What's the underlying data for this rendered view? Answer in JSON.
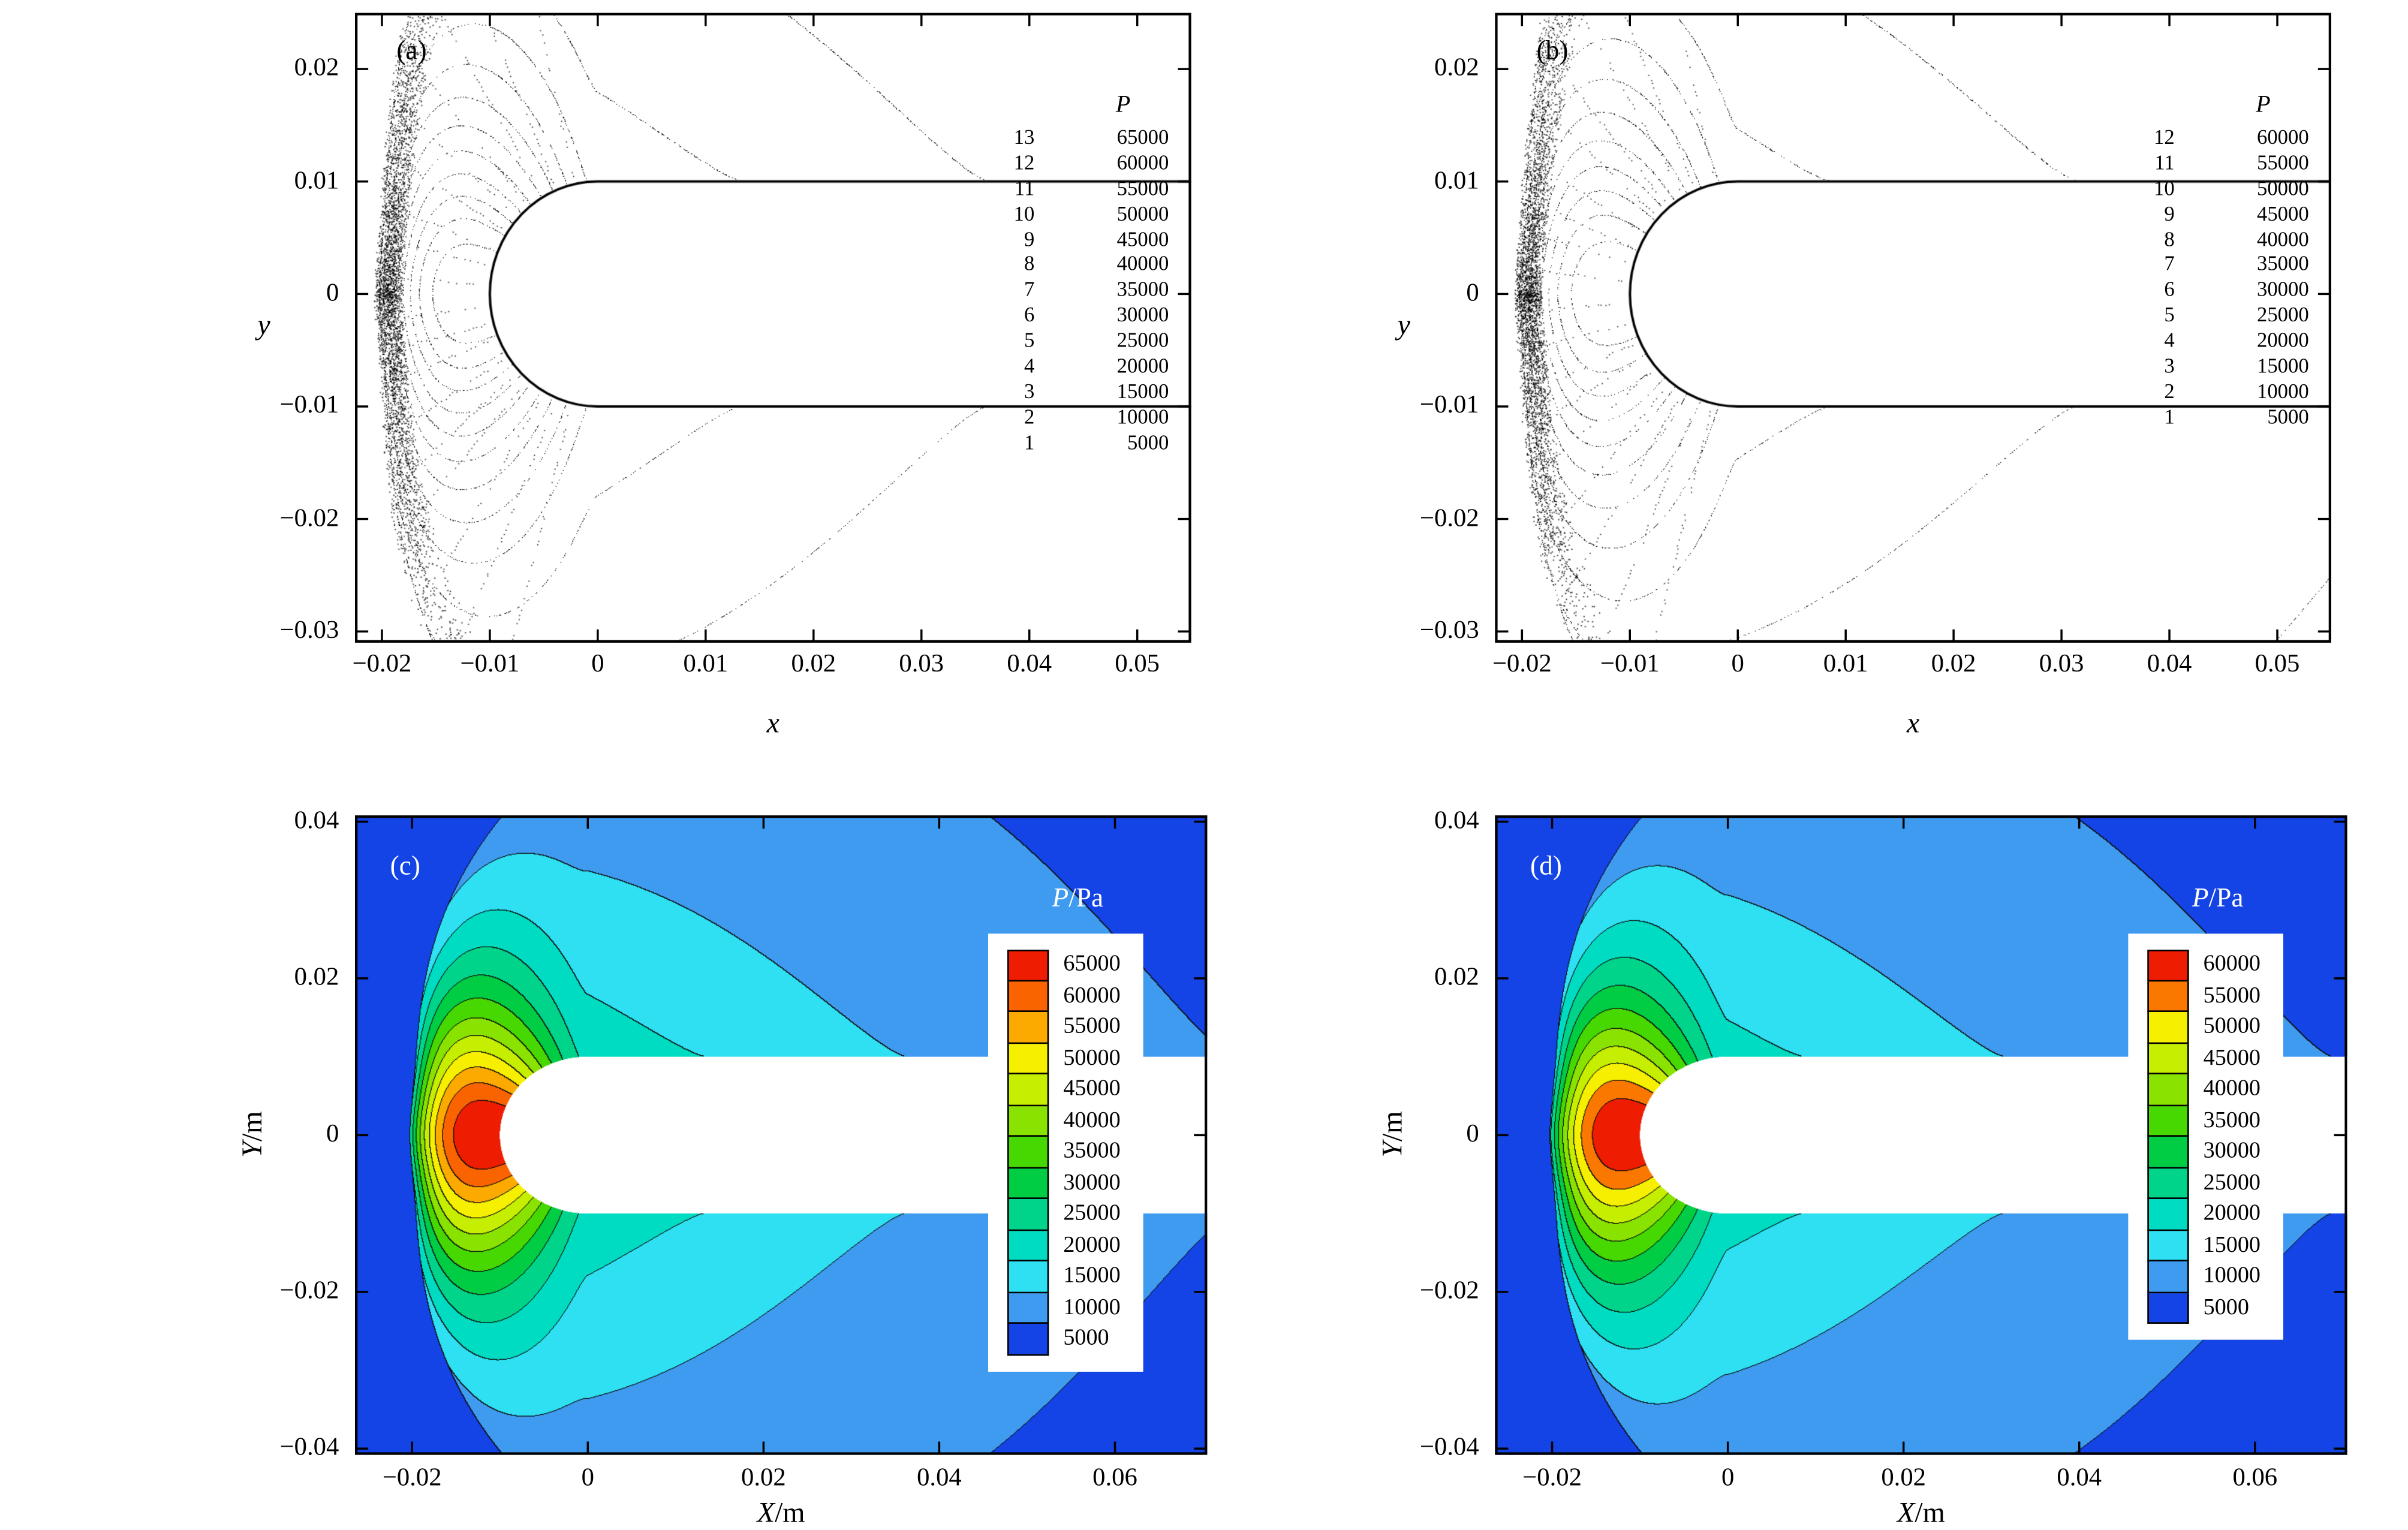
{
  "chart_data": [
    {
      "id": "a",
      "type": "contour",
      "panel_label": "(a)",
      "xlabel": {
        "var": "x",
        "unit": ""
      },
      "ylabel": {
        "var": "y",
        "unit": ""
      },
      "xlim": [
        -0.0225,
        0.055
      ],
      "ylim": [
        -0.031,
        0.025
      ],
      "x_tick_values": [
        -0.02,
        -0.01,
        0,
        0.01,
        0.02,
        0.03,
        0.04,
        0.05
      ],
      "x_tick_labels": [
        "−0.02",
        "−0.01",
        "0",
        "0.01",
        "0.02",
        "0.03",
        "0.04",
        "0.05"
      ],
      "y_tick_values": [
        0.02,
        0.01,
        0,
        -0.01,
        -0.02,
        -0.03
      ],
      "y_tick_labels": [
        "0.02",
        "0.01",
        "0",
        "−0.01",
        "−0.02",
        "−0.03"
      ],
      "legend_title": "P",
      "levels": [
        {
          "index": 13,
          "value": 65000
        },
        {
          "index": 12,
          "value": 60000
        },
        {
          "index": 11,
          "value": 55000
        },
        {
          "index": 10,
          "value": 50000
        },
        {
          "index": 9,
          "value": 45000
        },
        {
          "index": 8,
          "value": 40000
        },
        {
          "index": 7,
          "value": 35000
        },
        {
          "index": 6,
          "value": 30000
        },
        {
          "index": 5,
          "value": 25000
        },
        {
          "index": 4,
          "value": 20000
        },
        {
          "index": 3,
          "value": 15000
        },
        {
          "index": 2,
          "value": 10000
        },
        {
          "index": 1,
          "value": 5000
        }
      ],
      "body": {
        "shape": "capsule",
        "nose_tip_x": -0.01,
        "radius": 0.01
      }
    },
    {
      "id": "b",
      "type": "contour",
      "panel_label": "(b)",
      "xlabel": {
        "var": "x",
        "unit": ""
      },
      "ylabel": {
        "var": "y",
        "unit": ""
      },
      "xlim": [
        -0.0225,
        0.055
      ],
      "ylim": [
        -0.031,
        0.025
      ],
      "x_tick_values": [
        -0.02,
        -0.01,
        0,
        0.01,
        0.02,
        0.03,
        0.04,
        0.05
      ],
      "x_tick_labels": [
        "−0.02",
        "−0.01",
        "0",
        "0.01",
        "0.02",
        "0.03",
        "0.04",
        "0.05"
      ],
      "y_tick_values": [
        0.02,
        0.01,
        0,
        -0.01,
        -0.02,
        -0.03
      ],
      "y_tick_labels": [
        "0.02",
        "0.01",
        "0",
        "−0.01",
        "−0.02",
        "−0.03"
      ],
      "legend_title": "P",
      "levels": [
        {
          "index": 12,
          "value": 60000
        },
        {
          "index": 11,
          "value": 55000
        },
        {
          "index": 10,
          "value": 50000
        },
        {
          "index": 9,
          "value": 45000
        },
        {
          "index": 8,
          "value": 40000
        },
        {
          "index": 7,
          "value": 35000
        },
        {
          "index": 6,
          "value": 30000
        },
        {
          "index": 5,
          "value": 25000
        },
        {
          "index": 4,
          "value": 20000
        },
        {
          "index": 3,
          "value": 15000
        },
        {
          "index": 2,
          "value": 10000
        },
        {
          "index": 1,
          "value": 5000
        }
      ],
      "body": {
        "shape": "capsule",
        "nose_tip_x": -0.01,
        "radius": 0.01
      }
    },
    {
      "id": "c",
      "type": "filled-contour",
      "panel_label": "(c)",
      "xlabel": {
        "var": "X",
        "unit": "/m"
      },
      "ylabel": {
        "var": "Y",
        "unit": "/m"
      },
      "xlim": [
        -0.0265,
        0.0705
      ],
      "ylim": [
        -0.0408,
        0.0408
      ],
      "x_tick_values": [
        -0.02,
        0,
        0.02,
        0.04,
        0.06
      ],
      "x_tick_labels": [
        "−0.02",
        "0",
        "0.02",
        "0.04",
        "0.06"
      ],
      "y_tick_values": [
        0.04,
        0.02,
        0,
        -0.02,
        -0.04
      ],
      "y_tick_labels": [
        "0.04",
        "0.02",
        "0",
        "−0.02",
        "−0.04"
      ],
      "colorbar_title": {
        "var": "P",
        "unit": "/Pa"
      },
      "levels": [
        {
          "value": 65000,
          "color": "#ee1c00"
        },
        {
          "value": 60000,
          "color": "#fa6400"
        },
        {
          "value": 55000,
          "color": "#fcaa00"
        },
        {
          "value": 50000,
          "color": "#f6f000"
        },
        {
          "value": 45000,
          "color": "#c6ee00"
        },
        {
          "value": 40000,
          "color": "#8ae200"
        },
        {
          "value": 35000,
          "color": "#46d800"
        },
        {
          "value": 30000,
          "color": "#00cc44"
        },
        {
          "value": 25000,
          "color": "#00d48a"
        },
        {
          "value": 20000,
          "color": "#00dcc2"
        },
        {
          "value": 15000,
          "color": "#2ee0f2"
        },
        {
          "value": 10000,
          "color": "#3f9bf0"
        },
        {
          "value": 5000,
          "color": "#1443e6"
        }
      ],
      "body": {
        "shape": "capsule",
        "nose_tip_x": -0.01,
        "radius": 0.01
      }
    },
    {
      "id": "d",
      "type": "filled-contour",
      "panel_label": "(d)",
      "xlabel": {
        "var": "X",
        "unit": "/m"
      },
      "ylabel": {
        "var": "Y",
        "unit": "/m"
      },
      "xlim": [
        -0.0265,
        0.0705
      ],
      "ylim": [
        -0.0408,
        0.0408
      ],
      "x_tick_values": [
        -0.02,
        0,
        0.02,
        0.04,
        0.06
      ],
      "x_tick_labels": [
        "−0.02",
        "0",
        "0.02",
        "0.04",
        "0.06"
      ],
      "y_tick_values": [
        0.04,
        0.02,
        0,
        -0.02,
        -0.04
      ],
      "y_tick_labels": [
        "0.04",
        "0.02",
        "0",
        "−0.02",
        "−0.04"
      ],
      "colorbar_title": {
        "var": "P",
        "unit": "/Pa"
      },
      "levels": [
        {
          "value": 60000,
          "color": "#ee1c00"
        },
        {
          "value": 55000,
          "color": "#fa7800"
        },
        {
          "value": 50000,
          "color": "#f6f000"
        },
        {
          "value": 45000,
          "color": "#c6ee00"
        },
        {
          "value": 40000,
          "color": "#8ae200"
        },
        {
          "value": 35000,
          "color": "#46d800"
        },
        {
          "value": 30000,
          "color": "#00cc44"
        },
        {
          "value": 25000,
          "color": "#00d48a"
        },
        {
          "value": 20000,
          "color": "#00dcc2"
        },
        {
          "value": 15000,
          "color": "#2ee0f2"
        },
        {
          "value": 10000,
          "color": "#3f9bf0"
        },
        {
          "value": 5000,
          "color": "#1443e6"
        }
      ],
      "body": {
        "shape": "capsule",
        "nose_tip_x": -0.01,
        "radius": 0.01
      }
    }
  ]
}
